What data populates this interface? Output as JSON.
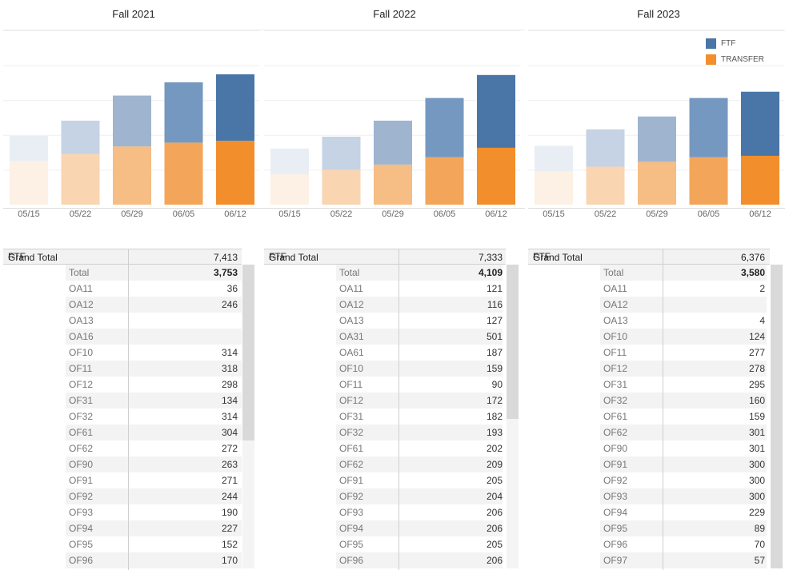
{
  "colors": {
    "ftf": [
      "#e9eef5",
      "#c5d3e4",
      "#9fb4cf",
      "#7598c0",
      "#4a76a7"
    ],
    "transfer": [
      "#fdf0e4",
      "#f9d5b1",
      "#f6bd84",
      "#f3a65a",
      "#f28e2b"
    ],
    "legend_ftf": "#4a76a7",
    "legend_transfer": "#f28e2b"
  },
  "legend": {
    "ftf": "FTF",
    "transfer": "TRANSFER"
  },
  "chart_data": [
    {
      "type": "bar",
      "title": "Fall 2021",
      "stacked": true,
      "categories": [
        "05/15",
        "05/22",
        "05/29",
        "06/05",
        "06/12"
      ],
      "series": [
        {
          "name": "TRANSFER",
          "values": [
            1250,
            1450,
            1670,
            1780,
            1830
          ]
        },
        {
          "name": "FTF",
          "values": [
            720,
            960,
            1460,
            1730,
            1910
          ]
        }
      ],
      "ylim": [
        0,
        5000
      ]
    },
    {
      "type": "bar",
      "title": "Fall 2022",
      "stacked": true,
      "categories": [
        "05/15",
        "05/22",
        "05/29",
        "06/05",
        "06/12"
      ],
      "series": [
        {
          "name": "TRANSFER",
          "values": [
            870,
            1000,
            1150,
            1360,
            1630
          ]
        },
        {
          "name": "FTF",
          "values": [
            740,
            950,
            1260,
            1700,
            2090
          ]
        }
      ],
      "ylim": [
        0,
        5000
      ]
    },
    {
      "type": "bar",
      "title": "Fall 2023",
      "stacked": true,
      "categories": [
        "05/15",
        "05/22",
        "05/29",
        "06/05",
        "06/12"
      ],
      "series": [
        {
          "name": "TRANSFER",
          "values": [
            950,
            1090,
            1230,
            1360,
            1400
          ]
        },
        {
          "name": "FTF",
          "values": [
            740,
            1070,
            1300,
            1700,
            1840
          ]
        }
      ],
      "ylim": [
        0,
        5000
      ]
    }
  ],
  "tables": [
    {
      "grand_total_label": "Grand Total",
      "grand_total": "7,413",
      "group_label": "FTF",
      "total_label": "Total",
      "total": "3,753",
      "rows": [
        {
          "code": "OA11",
          "value": "36"
        },
        {
          "code": "OA12",
          "value": "246"
        },
        {
          "code": "OA13",
          "value": ""
        },
        {
          "code": "OA16",
          "value": ""
        },
        {
          "code": "OF10",
          "value": "314"
        },
        {
          "code": "OF11",
          "value": "318"
        },
        {
          "code": "OF12",
          "value": "298"
        },
        {
          "code": "OF31",
          "value": "134"
        },
        {
          "code": "OF32",
          "value": "314"
        },
        {
          "code": "OF61",
          "value": "304"
        },
        {
          "code": "OF62",
          "value": "272"
        },
        {
          "code": "OF90",
          "value": "263"
        },
        {
          "code": "OF91",
          "value": "271"
        },
        {
          "code": "OF92",
          "value": "244"
        },
        {
          "code": "OF93",
          "value": "190"
        },
        {
          "code": "OF94",
          "value": "227"
        },
        {
          "code": "OF95",
          "value": "152"
        },
        {
          "code": "OF96",
          "value": "170"
        }
      ]
    },
    {
      "grand_total_label": "Grand Total",
      "grand_total": "7,333",
      "group_label": "FTF",
      "total_label": "Total",
      "total": "4,109",
      "rows": [
        {
          "code": "OA11",
          "value": "121"
        },
        {
          "code": "OA12",
          "value": "116"
        },
        {
          "code": "OA13",
          "value": "127"
        },
        {
          "code": "OA31",
          "value": "501"
        },
        {
          "code": "OA61",
          "value": "187"
        },
        {
          "code": "OF10",
          "value": "159"
        },
        {
          "code": "OF11",
          "value": "90"
        },
        {
          "code": "OF12",
          "value": "172"
        },
        {
          "code": "OF31",
          "value": "182"
        },
        {
          "code": "OF32",
          "value": "193"
        },
        {
          "code": "OF61",
          "value": "202"
        },
        {
          "code": "OF62",
          "value": "209"
        },
        {
          "code": "OF91",
          "value": "205"
        },
        {
          "code": "OF92",
          "value": "204"
        },
        {
          "code": "OF93",
          "value": "206"
        },
        {
          "code": "OF94",
          "value": "206"
        },
        {
          "code": "OF95",
          "value": "205"
        },
        {
          "code": "OF96",
          "value": "206"
        }
      ]
    },
    {
      "grand_total_label": "Grand Total",
      "grand_total": "6,376",
      "group_label": "FTF",
      "total_label": "Total",
      "total": "3,580",
      "rows": [
        {
          "code": "OA11",
          "value": "2"
        },
        {
          "code": "OA12",
          "value": ""
        },
        {
          "code": "OA13",
          "value": "4"
        },
        {
          "code": "OF10",
          "value": "124"
        },
        {
          "code": "OF11",
          "value": "277"
        },
        {
          "code": "OF12",
          "value": "278"
        },
        {
          "code": "OF31",
          "value": "295"
        },
        {
          "code": "OF32",
          "value": "160"
        },
        {
          "code": "OF61",
          "value": "159"
        },
        {
          "code": "OF62",
          "value": "301"
        },
        {
          "code": "OF90",
          "value": "301"
        },
        {
          "code": "OF91",
          "value": "300"
        },
        {
          "code": "OF92",
          "value": "300"
        },
        {
          "code": "OF93",
          "value": "300"
        },
        {
          "code": "OF94",
          "value": "229"
        },
        {
          "code": "OF95",
          "value": "89"
        },
        {
          "code": "OF96",
          "value": "70"
        },
        {
          "code": "OF97",
          "value": "57"
        }
      ]
    }
  ]
}
